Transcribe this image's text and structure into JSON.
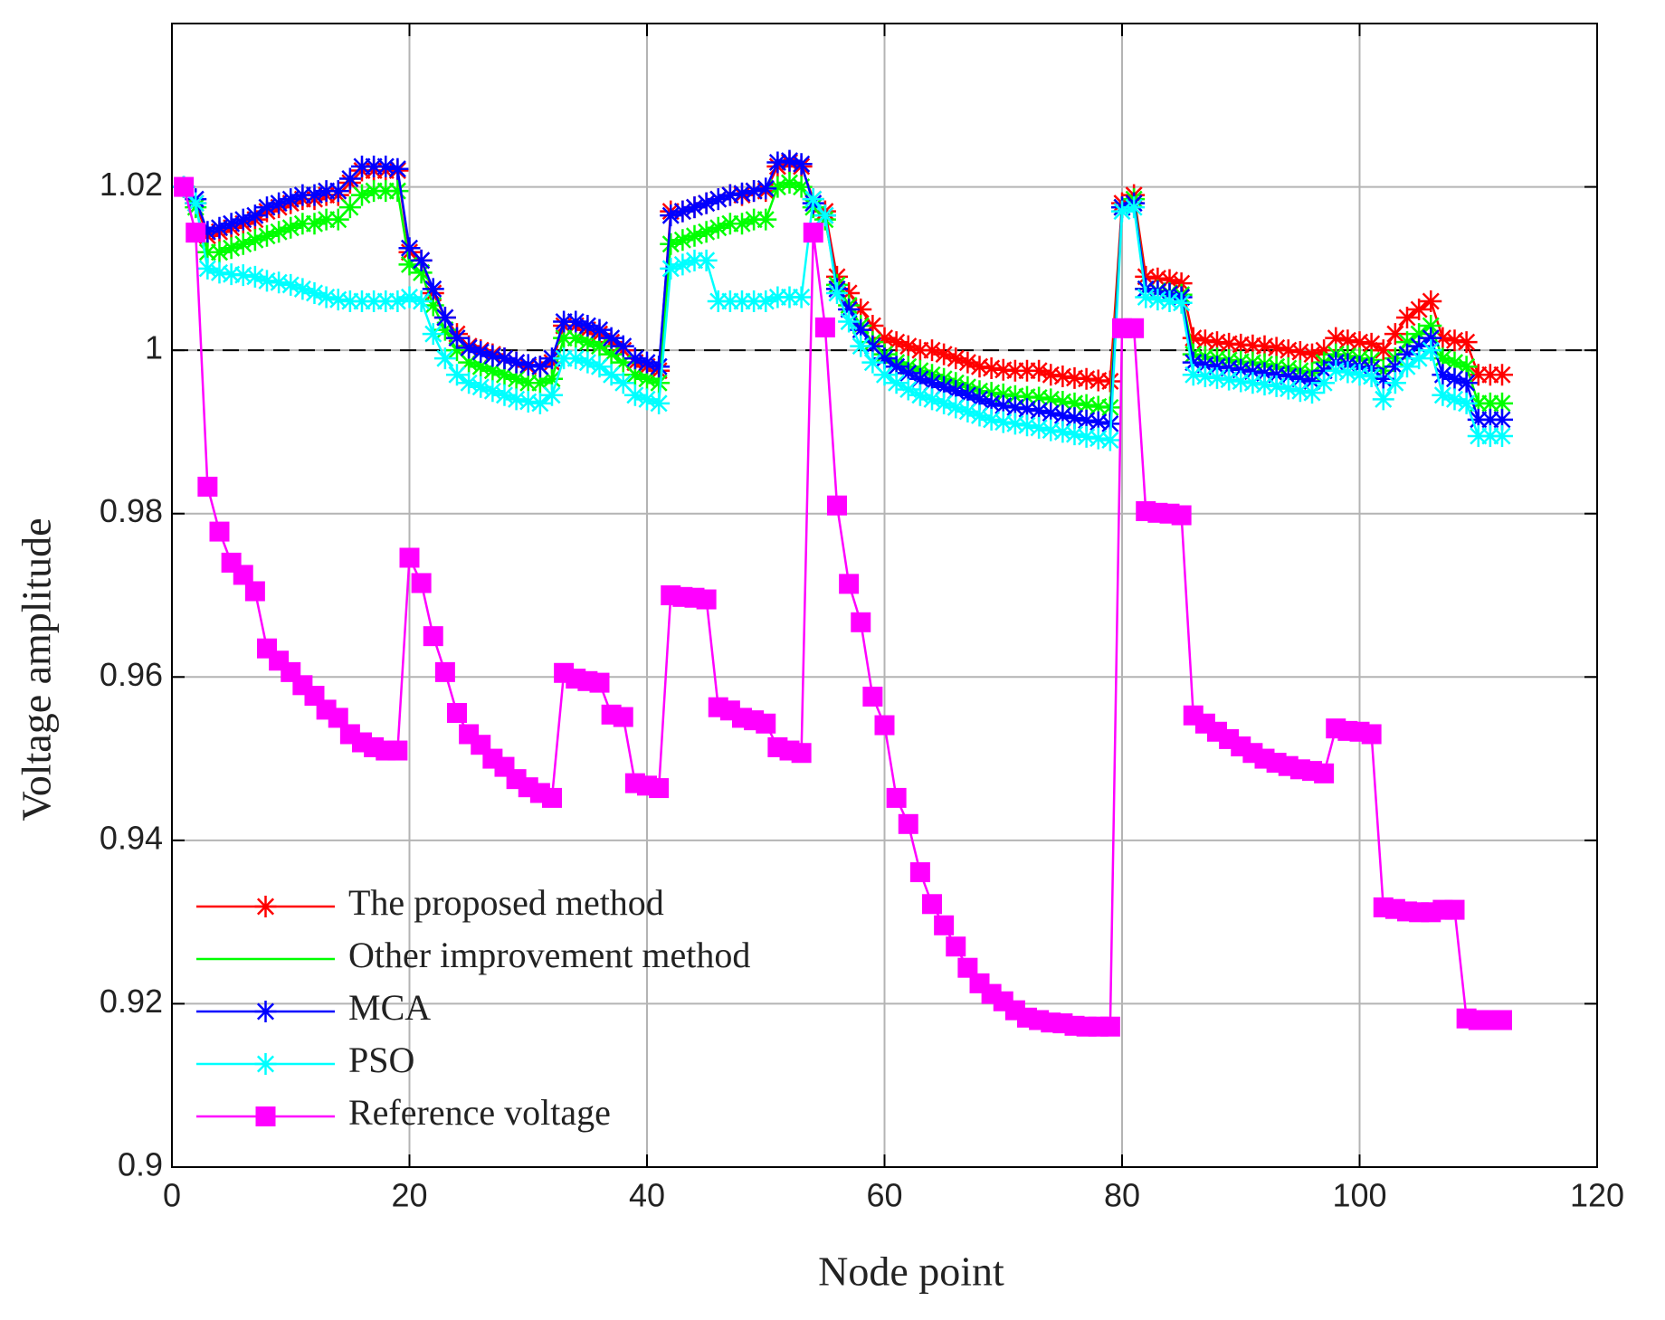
{
  "chart_data": {
    "type": "line",
    "x_label": "Node point",
    "y_label": "Voltage amplitude",
    "x": [
      1,
      2,
      3,
      4,
      5,
      6,
      7,
      8,
      9,
      10,
      11,
      12,
      13,
      14,
      15,
      16,
      17,
      18,
      19,
      20,
      21,
      22,
      23,
      24,
      25,
      26,
      27,
      28,
      29,
      30,
      31,
      32,
      33,
      34,
      35,
      36,
      37,
      38,
      39,
      40,
      41,
      42,
      43,
      44,
      45,
      46,
      47,
      48,
      49,
      50,
      51,
      52,
      53,
      54,
      55,
      56,
      57,
      58,
      59,
      60,
      61,
      62,
      63,
      64,
      65,
      66,
      67,
      68,
      69,
      70,
      71,
      72,
      73,
      74,
      75,
      76,
      77,
      78,
      79,
      80,
      81,
      82,
      83,
      84,
      85,
      86,
      87,
      88,
      89,
      90,
      91,
      92,
      93,
      94,
      95,
      96,
      97,
      98,
      99,
      100,
      101,
      102,
      103,
      104,
      105,
      106,
      107,
      108,
      109,
      110,
      111,
      112
    ],
    "series": [
      {
        "name": "The proposed method",
        "color": "#ff0000",
        "marker": "asterisk",
        "legend_marker": true,
        "values": [
          1.02,
          1.018,
          1.014,
          1.0145,
          1.015,
          1.0155,
          1.016,
          1.017,
          1.0175,
          1.018,
          1.0185,
          1.0185,
          1.019,
          1.019,
          1.0205,
          1.022,
          1.022,
          1.022,
          1.022,
          1.012,
          1.011,
          1.007,
          1.004,
          1.002,
          1.0005,
          1.0,
          0.9995,
          0.999,
          0.9985,
          0.998,
          0.998,
          0.9985,
          1.003,
          1.003,
          1.0025,
          1.002,
          1.001,
          1.0,
          0.9985,
          0.998,
          0.9975,
          1.017,
          1.017,
          1.0175,
          1.018,
          1.0185,
          1.019,
          1.019,
          1.0195,
          1.0195,
          1.0225,
          1.023,
          1.0225,
          1.0185,
          1.017,
          1.009,
          1.007,
          1.005,
          1.003,
          1.0015,
          1.001,
          1.0005,
          1.0,
          1.0,
          0.9995,
          0.999,
          0.9985,
          0.998,
          0.9978,
          0.9976,
          0.9975,
          0.9975,
          0.9975,
          0.997,
          0.9968,
          0.9966,
          0.9965,
          0.9963,
          0.9962,
          1.018,
          1.019,
          1.009,
          1.0088,
          1.0086,
          1.0082,
          1.0015,
          1.0012,
          1.001,
          1.0008,
          1.0007,
          1.0006,
          1.0005,
          1.0003,
          1.0,
          0.9998,
          0.9995,
          1.0,
          1.0015,
          1.0012,
          1.001,
          1.0008,
          1.0,
          1.002,
          1.004,
          1.005,
          1.006,
          1.0015,
          1.0012,
          1.001,
          0.997,
          0.997,
          0.997
        ]
      },
      {
        "name": "Other improvement method",
        "color": "#00ff00",
        "marker": "asterisk",
        "legend_marker": false,
        "values": [
          1.02,
          1.0175,
          1.012,
          1.012,
          1.0125,
          1.013,
          1.0135,
          1.014,
          1.0145,
          1.015,
          1.0155,
          1.0155,
          1.016,
          1.016,
          1.0175,
          1.019,
          1.0195,
          1.0195,
          1.0195,
          1.0105,
          1.0095,
          1.0055,
          1.0025,
          1.0,
          0.9985,
          0.998,
          0.9975,
          0.997,
          0.9965,
          0.996,
          0.996,
          0.9965,
          1.0015,
          1.0015,
          1.001,
          1.0005,
          0.9995,
          0.9985,
          0.997,
          0.9965,
          0.996,
          1.013,
          1.0135,
          1.014,
          1.0145,
          1.015,
          1.0155,
          1.0155,
          1.016,
          1.016,
          1.02,
          1.0205,
          1.02,
          1.0175,
          1.016,
          1.008,
          1.0055,
          1.003,
          1.001,
          0.9995,
          0.9985,
          0.998,
          0.9975,
          0.997,
          0.9965,
          0.996,
          0.9955,
          0.995,
          0.9948,
          0.9946,
          0.9944,
          0.9943,
          0.9942,
          0.994,
          0.9937,
          0.9935,
          0.9933,
          0.9931,
          0.993,
          1.0175,
          1.0185,
          1.0075,
          1.0073,
          1.007,
          1.0068,
          0.9995,
          0.9992,
          0.999,
          0.9988,
          0.9986,
          0.9985,
          0.9983,
          0.998,
          0.9978,
          0.9975,
          0.9972,
          0.9985,
          0.9995,
          0.9993,
          0.999,
          0.9988,
          0.9975,
          0.999,
          1.001,
          1.002,
          1.003,
          0.999,
          0.9985,
          0.998,
          0.9935,
          0.9935,
          0.9935
        ]
      },
      {
        "name": "MCA",
        "color": "#0000ff",
        "marker": "asterisk",
        "legend_marker": true,
        "values": [
          1.02,
          1.0185,
          1.0145,
          1.015,
          1.0155,
          1.016,
          1.0165,
          1.0175,
          1.018,
          1.0185,
          1.019,
          1.019,
          1.0195,
          1.0195,
          1.021,
          1.0225,
          1.0225,
          1.0225,
          1.0222,
          1.0125,
          1.011,
          1.0075,
          1.004,
          1.0015,
          1.0003,
          0.9998,
          0.9993,
          0.999,
          0.9985,
          0.9982,
          0.998,
          0.999,
          1.0035,
          1.0035,
          1.003,
          1.0025,
          1.0015,
          1.0005,
          0.999,
          0.9985,
          0.998,
          1.0165,
          1.017,
          1.0175,
          1.018,
          1.0185,
          1.019,
          1.0192,
          1.0195,
          1.0198,
          1.023,
          1.0232,
          1.0228,
          1.018,
          1.0165,
          1.0075,
          1.005,
          1.0025,
          1.0005,
          0.999,
          0.998,
          0.9972,
          0.9965,
          0.996,
          0.9955,
          0.995,
          0.9945,
          0.994,
          0.9935,
          0.9932,
          0.993,
          0.9928,
          0.9926,
          0.9923,
          0.992,
          0.9917,
          0.9914,
          0.9912,
          0.991,
          1.0175,
          1.018,
          1.0075,
          1.0072,
          1.0069,
          1.0065,
          0.9985,
          0.9982,
          0.998,
          0.9978,
          0.9976,
          0.9974,
          0.9972,
          0.997,
          0.9968,
          0.9965,
          0.9962,
          0.9975,
          0.9985,
          0.9983,
          0.998,
          0.9978,
          0.9965,
          0.998,
          0.9995,
          1.0005,
          1.0015,
          0.997,
          0.9965,
          0.996,
          0.9915,
          0.9915,
          0.9915
        ]
      },
      {
        "name": "PSO",
        "color": "#00ffff",
        "marker": "asterisk",
        "legend_marker": true,
        "values": [
          1.02,
          1.018,
          1.01,
          1.0095,
          1.0093,
          1.0092,
          1.009,
          1.0085,
          1.0083,
          1.008,
          1.0075,
          1.007,
          1.0065,
          1.0062,
          1.006,
          1.006,
          1.006,
          1.006,
          1.006,
          1.0065,
          1.006,
          1.002,
          0.999,
          0.997,
          0.996,
          0.9955,
          0.995,
          0.9945,
          0.994,
          0.9937,
          0.9935,
          0.9945,
          0.999,
          0.999,
          0.9985,
          0.998,
          0.997,
          0.996,
          0.9945,
          0.994,
          0.9935,
          1.01,
          1.0105,
          1.011,
          1.011,
          1.006,
          1.006,
          1.006,
          1.006,
          1.006,
          1.0065,
          1.0065,
          1.0065,
          1.0185,
          1.0165,
          1.007,
          1.0035,
          1.0005,
          0.9985,
          0.997,
          0.996,
          0.9952,
          0.9945,
          0.994,
          0.9935,
          0.993,
          0.9925,
          0.992,
          0.9915,
          0.9912,
          0.991,
          0.9908,
          0.9905,
          0.9902,
          0.99,
          0.9897,
          0.9894,
          0.9892,
          0.989,
          1.017,
          1.0175,
          1.0065,
          1.0062,
          1.006,
          1.0058,
          0.997,
          0.9968,
          0.9966,
          0.9964,
          0.9962,
          0.996,
          0.9958,
          0.9956,
          0.9953,
          0.995,
          0.9948,
          0.996,
          0.9975,
          0.9973,
          0.997,
          0.9968,
          0.994,
          0.996,
          0.998,
          0.999,
          1.0,
          0.9945,
          0.994,
          0.9935,
          0.9895,
          0.9895,
          0.9895
        ]
      },
      {
        "name": "Reference voltage",
        "color": "#ff00ff",
        "marker": "square",
        "legend_marker": true,
        "values": [
          1.02,
          1.0144,
          0.9833,
          0.9778,
          0.974,
          0.9725,
          0.9705,
          0.9635,
          0.962,
          0.9606,
          0.959,
          0.9577,
          0.956,
          0.955,
          0.953,
          0.952,
          0.9514,
          0.951,
          0.951,
          0.9746,
          0.9715,
          0.965,
          0.9606,
          0.9556,
          0.953,
          0.9517,
          0.95,
          0.949,
          0.9475,
          0.9465,
          0.9458,
          0.9452,
          0.9605,
          0.9598,
          0.9595,
          0.9593,
          0.9554,
          0.9551,
          0.947,
          0.9467,
          0.9464,
          0.97,
          0.9698,
          0.9697,
          0.9695,
          0.9563,
          0.9559,
          0.955,
          0.9547,
          0.9543,
          0.9514,
          0.951,
          0.9507,
          1.0144,
          1.0028,
          0.981,
          0.9714,
          0.9667,
          0.9576,
          0.9541,
          0.9452,
          0.942,
          0.9361,
          0.9322,
          0.9296,
          0.927,
          0.9244,
          0.9225,
          0.9212,
          0.9203,
          0.9192,
          0.9183,
          0.918,
          0.9177,
          0.9176,
          0.9173,
          0.9172,
          0.9172,
          0.9172,
          1.0027,
          1.0027,
          0.9803,
          0.9801,
          0.98,
          0.9798,
          0.9553,
          0.9543,
          0.9533,
          0.9524,
          0.9515,
          0.9507,
          0.95,
          0.9495,
          0.9491,
          0.9487,
          0.9485,
          0.9482,
          0.9537,
          0.9534,
          0.9533,
          0.953,
          0.9318,
          0.9316,
          0.9313,
          0.9312,
          0.9312,
          0.9315,
          0.9315,
          0.9182,
          0.918,
          0.918,
          0.918
        ]
      }
    ],
    "xlim": [
      0,
      120
    ],
    "xticks": [
      0,
      20,
      40,
      60,
      80,
      100,
      120
    ],
    "ylim": [
      0.9,
      1.04
    ],
    "yticks": [
      0.9,
      0.92,
      0.94,
      0.96,
      0.98,
      1,
      1.02
    ],
    "reference_line": 1,
    "grid": true,
    "legend": "lower left"
  }
}
